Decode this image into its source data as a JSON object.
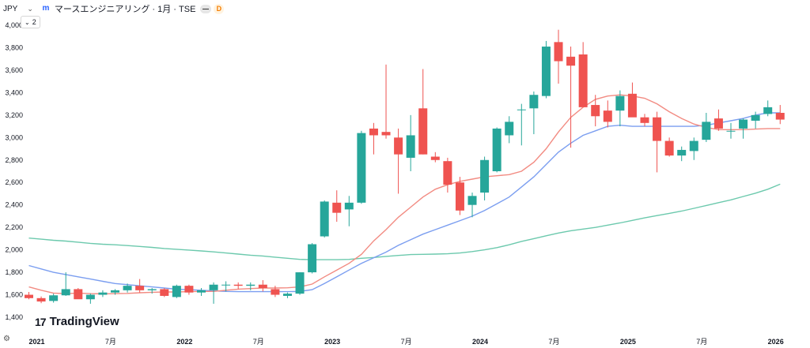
{
  "header": {
    "currency": "JPY",
    "symbol_title": "マースエンジニアリング · 1月 · TSE",
    "delay_badge": "D",
    "indicator_count": "2"
  },
  "branding": {
    "logo_text": "TradingView",
    "logo_mark": "17"
  },
  "icons": {
    "currency_dropdown": "chevron-down-icon",
    "symbol_logo": "m-logo-icon",
    "settings": "settings-icon"
  },
  "colors": {
    "up": "#26a69a",
    "down": "#ef5350",
    "ma_fast": "#f28b82",
    "ma_mid": "#7b9ef0",
    "ma_slow": "#6cc9ad",
    "text": "#131722"
  },
  "chart_data": {
    "type": "candlestick",
    "interval": "monthly",
    "ylim": [
      1380,
      4050
    ],
    "y_ticks": [
      1400,
      1600,
      1800,
      2000,
      2200,
      2400,
      2600,
      2800,
      3000,
      3200,
      3400,
      3600,
      3800,
      4000
    ],
    "x_ticks": [
      "2021",
      "7月",
      "2022",
      "7月",
      "2023",
      "7月",
      "2024",
      "7月",
      "2025",
      "7月",
      "2026"
    ],
    "dates": [
      "2021-01",
      "2021-02",
      "2021-03",
      "2021-04",
      "2021-05",
      "2021-06",
      "2021-07",
      "2021-08",
      "2021-09",
      "2021-10",
      "2021-11",
      "2021-12",
      "2022-01",
      "2022-02",
      "2022-03",
      "2022-04",
      "2022-05",
      "2022-06",
      "2022-07",
      "2022-08",
      "2022-09",
      "2022-10",
      "2022-11",
      "2022-12",
      "2023-01",
      "2023-02",
      "2023-03",
      "2023-04",
      "2023-05",
      "2023-06",
      "2023-07",
      "2023-08",
      "2023-09",
      "2023-10",
      "2023-11",
      "2023-12",
      "2024-01",
      "2024-02",
      "2024-03",
      "2024-04",
      "2024-05",
      "2024-06",
      "2024-07",
      "2024-08",
      "2024-09",
      "2024-10",
      "2024-11",
      "2024-12",
      "2025-01",
      "2025-02",
      "2025-03",
      "2025-04",
      "2025-05",
      "2025-06",
      "2025-07",
      "2025-08",
      "2025-09",
      "2025-10",
      "2025-11",
      "2025-12",
      "2026-01",
      "2026-02"
    ],
    "ohlc": [
      [
        1600,
        1625,
        1560,
        1570
      ],
      [
        1570,
        1585,
        1525,
        1540
      ],
      [
        1545,
        1610,
        1530,
        1595
      ],
      [
        1595,
        1800,
        1590,
        1650
      ],
      [
        1650,
        1660,
        1570,
        1560
      ],
      [
        1560,
        1610,
        1520,
        1600
      ],
      [
        1600,
        1640,
        1580,
        1620
      ],
      [
        1620,
        1650,
        1600,
        1640
      ],
      [
        1640,
        1700,
        1620,
        1680
      ],
      [
        1680,
        1740,
        1620,
        1640
      ],
      [
        1640,
        1660,
        1610,
        1650
      ],
      [
        1650,
        1660,
        1580,
        1590
      ],
      [
        1580,
        1690,
        1570,
        1680
      ],
      [
        1680,
        1690,
        1600,
        1620
      ],
      [
        1620,
        1660,
        1590,
        1640
      ],
      [
        1640,
        1710,
        1520,
        1690
      ],
      [
        1690,
        1720,
        1630,
        1690
      ],
      [
        1690,
        1710,
        1650,
        1680
      ],
      [
        1680,
        1710,
        1640,
        1690
      ],
      [
        1690,
        1730,
        1630,
        1660
      ],
      [
        1650,
        1680,
        1580,
        1600
      ],
      [
        1590,
        1620,
        1570,
        1610
      ],
      [
        1610,
        1800,
        1600,
        1800
      ],
      [
        1800,
        2060,
        1790,
        2050
      ],
      [
        2120,
        2440,
        2110,
        2430
      ],
      [
        2420,
        2530,
        2250,
        2330
      ],
      [
        2360,
        2480,
        2210,
        2420
      ],
      [
        2420,
        3060,
        2410,
        3040
      ],
      [
        3080,
        3130,
        2850,
        3020
      ],
      [
        3050,
        3650,
        2990,
        3020
      ],
      [
        3000,
        3080,
        2500,
        2850
      ],
      [
        2820,
        3200,
        2700,
        3020
      ],
      [
        3260,
        3610,
        2850,
        2850
      ],
      [
        2830,
        2870,
        2780,
        2800
      ],
      [
        2790,
        2820,
        2510,
        2580
      ],
      [
        2600,
        2650,
        2310,
        2350
      ],
      [
        2400,
        2510,
        2290,
        2480
      ],
      [
        2510,
        2830,
        2440,
        2800
      ],
      [
        2700,
        3090,
        2690,
        3080
      ],
      [
        3020,
        3190,
        2950,
        3140
      ],
      [
        3250,
        3300,
        2930,
        3250
      ],
      [
        3260,
        3410,
        3030,
        3380
      ],
      [
        3370,
        3860,
        3350,
        3810
      ],
      [
        3850,
        3960,
        3480,
        3680
      ],
      [
        3720,
        3810,
        2910,
        3640
      ],
      [
        3740,
        3850,
        3280,
        3270
      ],
      [
        3290,
        3380,
        3100,
        3190
      ],
      [
        3240,
        3330,
        3090,
        3140
      ],
      [
        3240,
        3420,
        3100,
        3370
      ],
      [
        3390,
        3490,
        3200,
        3180
      ],
      [
        3180,
        3210,
        3100,
        3130
      ],
      [
        3180,
        3230,
        2690,
        2970
      ],
      [
        2970,
        3000,
        2830,
        2840
      ],
      [
        2840,
        2920,
        2790,
        2890
      ],
      [
        2880,
        3000,
        2800,
        2970
      ],
      [
        2980,
        3220,
        2960,
        3140
      ],
      [
        3170,
        3250,
        3060,
        3080
      ],
      [
        3060,
        3130,
        2990,
        3060
      ],
      [
        3080,
        3170,
        2990,
        3160
      ],
      [
        3150,
        3230,
        3080,
        3200
      ],
      [
        3210,
        3330,
        3190,
        3270
      ],
      [
        3220,
        3290,
        3120,
        3160
      ]
    ],
    "ma_fast": [
      1670,
      1640,
      1615,
      1610,
      1615,
      1610,
      1608,
      1610,
      1612,
      1618,
      1622,
      1625,
      1625,
      1628,
      1630,
      1630,
      1640,
      1650,
      1655,
      1660,
      1660,
      1662,
      1670,
      1695,
      1760,
      1820,
      1880,
      1960,
      2080,
      2180,
      2290,
      2380,
      2470,
      2540,
      2580,
      2610,
      2630,
      2650,
      2660,
      2670,
      2700,
      2780,
      2900,
      3050,
      3180,
      3270,
      3340,
      3370,
      3380,
      3370,
      3350,
      3300,
      3230,
      3170,
      3120,
      3090,
      3070,
      3070,
      3070,
      3075,
      3080,
      3080
    ],
    "ma_mid": [
      1860,
      1830,
      1800,
      1780,
      1760,
      1740,
      1720,
      1700,
      1690,
      1680,
      1670,
      1660,
      1650,
      1645,
      1640,
      1635,
      1630,
      1628,
      1628,
      1628,
      1628,
      1628,
      1630,
      1645,
      1700,
      1760,
      1820,
      1880,
      1930,
      1980,
      2040,
      2090,
      2140,
      2180,
      2220,
      2260,
      2300,
      2350,
      2410,
      2470,
      2560,
      2650,
      2760,
      2870,
      2950,
      3020,
      3060,
      3100,
      3110,
      3100,
      3100,
      3100,
      3100,
      3100,
      3100,
      3110,
      3130,
      3150,
      3170,
      3200,
      3220,
      3220
    ],
    "ma_slow": [
      2105,
      2095,
      2085,
      2078,
      2068,
      2058,
      2050,
      2045,
      2038,
      2030,
      2022,
      2012,
      2005,
      1998,
      1990,
      1982,
      1972,
      1962,
      1952,
      1945,
      1935,
      1925,
      1915,
      1912,
      1912,
      1912,
      1915,
      1925,
      1932,
      1942,
      1950,
      1958,
      1960,
      1962,
      1965,
      1972,
      1985,
      2000,
      2020,
      2045,
      2075,
      2100,
      2125,
      2150,
      2170,
      2185,
      2200,
      2220,
      2240,
      2262,
      2285,
      2305,
      2325,
      2345,
      2370,
      2395,
      2420,
      2445,
      2475,
      2505,
      2540,
      2585
    ]
  }
}
